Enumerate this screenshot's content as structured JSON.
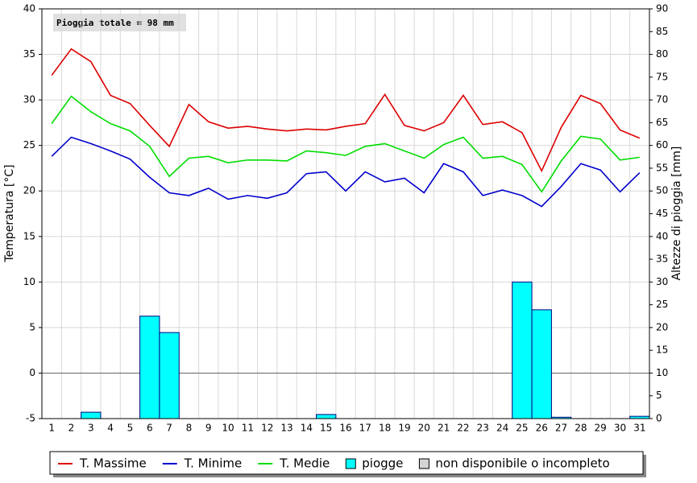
{
  "chart_data": {
    "type": "line",
    "annotation": "Pioggia totale = 98 mm",
    "ylabel": "Temperatura [°C]",
    "y2label": "Altezze di pioggia [mm]",
    "categories": [
      "1",
      "2",
      "3",
      "4",
      "5",
      "6",
      "7",
      "8",
      "9",
      "10",
      "11",
      "12",
      "13",
      "14",
      "15",
      "16",
      "17",
      "18",
      "19",
      "20",
      "21",
      "22",
      "23",
      "24",
      "25",
      "26",
      "27",
      "28",
      "29",
      "30",
      "31"
    ],
    "ylim": [
      -5,
      40
    ],
    "yticks": [
      -5,
      0,
      5,
      10,
      15,
      20,
      25,
      30,
      35,
      40
    ],
    "y2lim": [
      0,
      90
    ],
    "y2ticks": [
      0,
      5,
      10,
      15,
      20,
      25,
      30,
      35,
      40,
      45,
      50,
      55,
      60,
      65,
      70,
      75,
      80,
      85,
      90
    ],
    "grid": true,
    "series": [
      {
        "name": "T. Massime",
        "type": "line",
        "color": "#dd0000",
        "values": [
          32.7,
          35.6,
          34.2,
          30.5,
          29.6,
          27.2,
          24.9,
          29.5,
          27.6,
          26.9,
          27.1,
          26.8,
          26.6,
          26.8,
          26.7,
          27.1,
          27.4,
          30.6,
          27.2,
          26.6,
          27.5,
          30.5,
          27.3,
          27.6,
          26.4,
          22.2,
          27.0,
          30.5,
          29.6,
          26.7,
          25.8
        ]
      },
      {
        "name": "T. Minime",
        "type": "line",
        "color": "#0000cc",
        "values": [
          23.8,
          25.9,
          25.2,
          24.4,
          23.5,
          21.5,
          19.8,
          19.5,
          20.3,
          19.1,
          19.5,
          19.2,
          19.8,
          21.9,
          22.1,
          20.0,
          22.1,
          21.0,
          21.4,
          19.8,
          23.0,
          22.1,
          19.5,
          20.1,
          19.5,
          18.3,
          20.5,
          23.0,
          22.3,
          19.9,
          22.0
        ]
      },
      {
        "name": "T. Medie",
        "type": "line",
        "color": "#00dd00",
        "values": [
          27.4,
          30.4,
          28.7,
          27.4,
          26.6,
          24.9,
          21.6,
          23.6,
          23.8,
          23.1,
          23.4,
          23.4,
          23.3,
          24.4,
          24.2,
          23.9,
          24.9,
          25.2,
          24.4,
          23.6,
          25.1,
          25.9,
          23.6,
          23.8,
          22.9,
          19.9,
          23.3,
          26.0,
          25.7,
          23.4,
          23.7
        ]
      },
      {
        "name": "piogge",
        "type": "bar",
        "axis": "y2",
        "color": "#00ffff",
        "values": [
          0,
          0,
          1.4,
          0,
          0,
          22.5,
          18.9,
          0,
          0,
          0,
          0,
          0,
          0,
          0,
          0.9,
          0,
          0,
          0,
          0,
          0,
          0,
          0,
          0,
          0,
          30,
          23.9,
          0.3,
          0,
          0,
          0,
          0.5
        ]
      }
    ],
    "legend_extra": [
      {
        "name": "non disponibile o incompleto",
        "color": "#d4d4d4"
      }
    ]
  }
}
